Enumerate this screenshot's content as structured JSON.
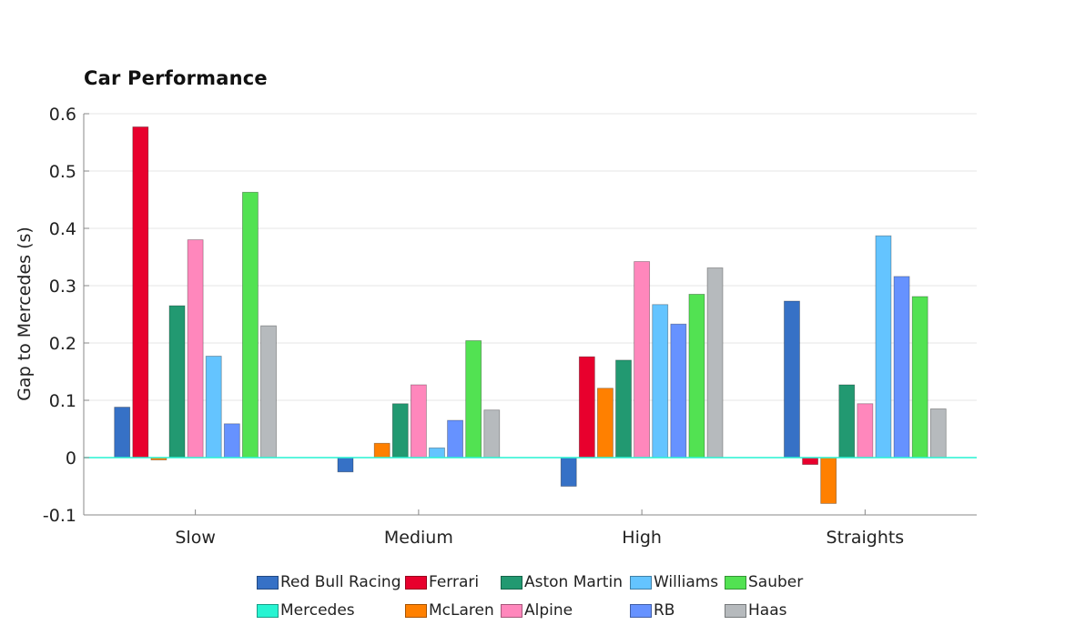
{
  "chart_data": {
    "type": "bar",
    "title": "Car Performance",
    "xlabel": "",
    "ylabel": "Gap to Mercedes (s)",
    "ylim": [
      -0.1,
      0.6
    ],
    "yticks": [
      {
        "value": -0.1,
        "label": "-0.1"
      },
      {
        "value": 0,
        "label": "0"
      },
      {
        "value": 0.1,
        "label": "0.1"
      },
      {
        "value": 0.2,
        "label": "0.2"
      },
      {
        "value": 0.3,
        "label": "0.3"
      },
      {
        "value": 0.4,
        "label": "0.4"
      },
      {
        "value": 0.5,
        "label": "0.5"
      },
      {
        "value": 0.6,
        "label": "0.6"
      }
    ],
    "grid": true,
    "legend_position": "bottom",
    "categories": [
      "Slow",
      "Medium",
      "High",
      "Straights"
    ],
    "series": [
      {
        "name": "Red Bull Racing",
        "color": "#3671C6",
        "values": [
          0.088,
          -0.025,
          -0.05,
          0.273
        ]
      },
      {
        "name": "Ferrari",
        "color": "#E8002D",
        "values": [
          0.577,
          0.0,
          0.176,
          -0.012
        ]
      },
      {
        "name": "McLaren",
        "color": "#FF8000",
        "values": [
          -0.004,
          0.025,
          0.121,
          -0.08
        ]
      },
      {
        "name": "Aston Martin",
        "color": "#229971",
        "values": [
          0.265,
          0.094,
          0.17,
          0.127
        ]
      },
      {
        "name": "Alpine",
        "color": "#FF87BC",
        "values": [
          0.38,
          0.127,
          0.342,
          0.094
        ]
      },
      {
        "name": "Williams",
        "color": "#64C4FF",
        "values": [
          0.177,
          0.017,
          0.267,
          0.387
        ]
      },
      {
        "name": "RB",
        "color": "#6692FF",
        "values": [
          0.059,
          0.065,
          0.233,
          0.316
        ]
      },
      {
        "name": "Sauber",
        "color": "#52E252",
        "values": [
          0.463,
          0.204,
          0.285,
          0.281
        ]
      },
      {
        "name": "Haas",
        "color": "#B6BABD",
        "values": [
          0.23,
          0.083,
          0.331,
          0.085
        ]
      },
      {
        "name": "Mercedes",
        "color": "#27F4D2",
        "values": [
          0,
          0,
          0,
          0
        ]
      }
    ],
    "legend_rows": [
      [
        "Red Bull Racing",
        "Ferrari",
        "Aston Martin",
        "Williams",
        "Sauber"
      ],
      [
        "Mercedes",
        "McLaren",
        "Alpine",
        "RB",
        "Haas"
      ]
    ]
  }
}
